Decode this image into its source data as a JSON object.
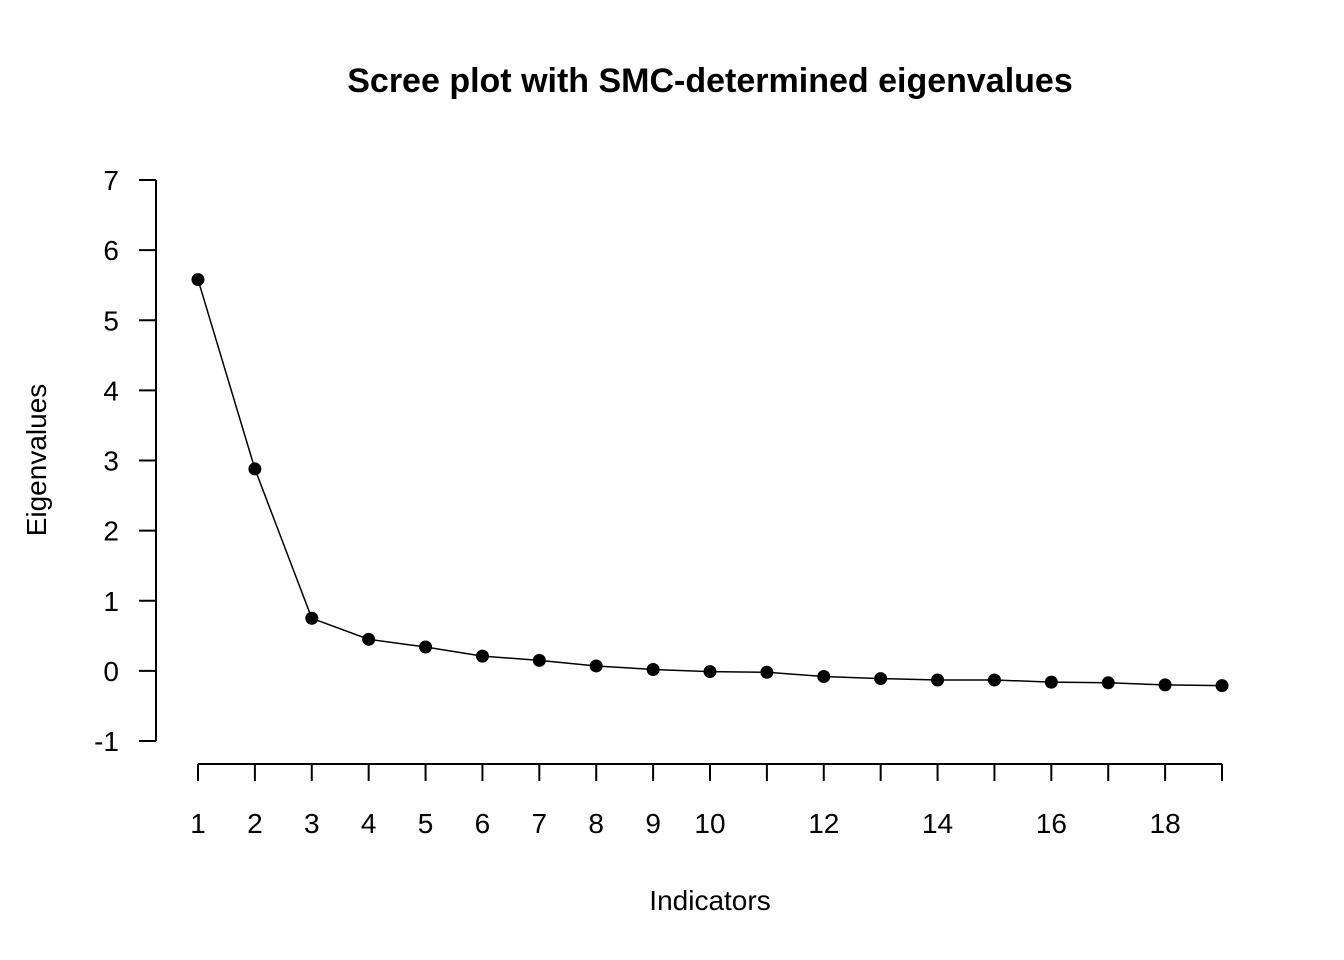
{
  "chart_data": {
    "type": "line",
    "title": "Scree plot with SMC-determined eigenvalues",
    "xlabel": "Indicators",
    "ylabel": "Eigenvalues",
    "x": [
      1,
      2,
      3,
      4,
      5,
      6,
      7,
      8,
      9,
      10,
      11,
      12,
      13,
      14,
      15,
      16,
      17,
      18,
      19
    ],
    "series": [
      {
        "values": [
          5.58,
          2.88,
          0.75,
          0.45,
          0.34,
          0.21,
          0.15,
          0.07,
          0.02,
          -0.01,
          -0.02,
          -0.08,
          -0.11,
          -0.13,
          -0.13,
          -0.16,
          -0.17,
          -0.2,
          -0.21
        ]
      }
    ],
    "yticks": [
      -1,
      0,
      1,
      2,
      3,
      4,
      5,
      6,
      7
    ],
    "xtick_labels": [
      1,
      2,
      3,
      4,
      5,
      6,
      7,
      8,
      9,
      10,
      12,
      14,
      16,
      18
    ],
    "xticks": [
      1,
      2,
      3,
      4,
      5,
      6,
      7,
      8,
      9,
      10,
      11,
      12,
      13,
      14,
      15,
      16,
      17,
      18,
      19
    ],
    "ylim": [
      -1,
      7
    ],
    "xlim": [
      1,
      19
    ],
    "grid": false,
    "marker": "filled-circle",
    "line_color": "#000000",
    "marker_color": "#000000"
  }
}
